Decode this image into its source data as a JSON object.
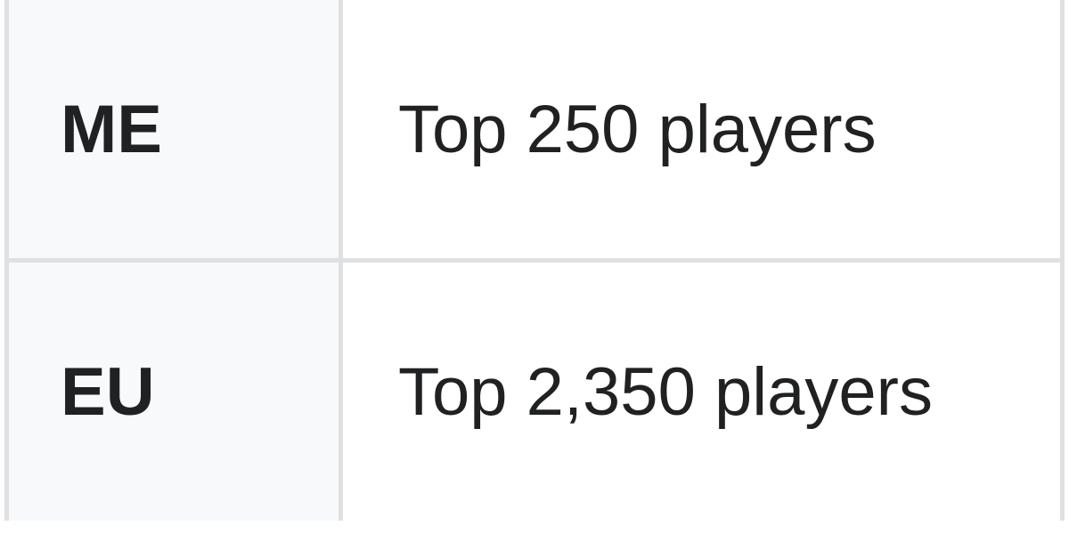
{
  "table": {
    "rows": [
      {
        "region": "ME",
        "value": "Top 250 players"
      },
      {
        "region": "EU",
        "value": "Top 2,350 players"
      }
    ]
  }
}
